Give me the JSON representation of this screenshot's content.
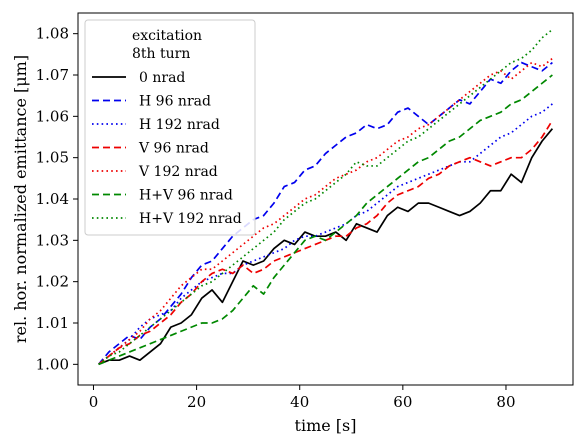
{
  "chart_data": {
    "type": "line",
    "xlabel": "time [s]",
    "ylabel": "rel. hor. normalized emittance [μm]",
    "xlim": [
      -3,
      93
    ],
    "ylim": [
      0.995,
      1.085
    ],
    "xticks": [
      0,
      20,
      40,
      60,
      80
    ],
    "yticks": [
      1.0,
      1.01,
      1.02,
      1.03,
      1.04,
      1.05,
      1.06,
      1.07,
      1.08
    ],
    "ytick_labels": [
      "1.00",
      "1.01",
      "1.02",
      "1.03",
      "1.04",
      "1.05",
      "1.06",
      "1.07",
      "1.08"
    ],
    "grid": false,
    "legend": {
      "placement": "top-left",
      "title_line1": "excitation",
      "title_line2": "8th turn"
    },
    "series": [
      {
        "name": "0 nrad",
        "color": "#000000",
        "dash": "solid",
        "x": [
          1,
          3,
          5,
          7,
          9,
          11,
          13,
          15,
          17,
          19,
          21,
          23,
          25,
          27,
          29,
          31,
          33,
          35,
          37,
          39,
          41,
          43,
          45,
          47,
          49,
          51,
          53,
          55,
          57,
          59,
          61,
          63,
          65,
          67,
          69,
          71,
          73,
          75,
          77,
          79,
          81,
          83,
          85,
          87,
          89
        ],
        "y": [
          1.0,
          1.001,
          1.001,
          1.002,
          1.001,
          1.003,
          1.005,
          1.009,
          1.01,
          1.012,
          1.016,
          1.018,
          1.015,
          1.02,
          1.025,
          1.024,
          1.025,
          1.028,
          1.03,
          1.029,
          1.032,
          1.031,
          1.031,
          1.032,
          1.03,
          1.034,
          1.033,
          1.032,
          1.036,
          1.038,
          1.037,
          1.039,
          1.039,
          1.038,
          1.037,
          1.036,
          1.037,
          1.039,
          1.042,
          1.042,
          1.046,
          1.044,
          1.05,
          1.054,
          1.057
        ]
      },
      {
        "name": "H 96 nrad",
        "color": "#0000ee",
        "dash": "dashed",
        "x": [
          1,
          3,
          5,
          7,
          9,
          11,
          13,
          15,
          17,
          19,
          21,
          23,
          25,
          27,
          29,
          31,
          33,
          35,
          37,
          39,
          41,
          43,
          45,
          47,
          49,
          51,
          53,
          55,
          57,
          59,
          61,
          63,
          65,
          67,
          69,
          71,
          73,
          75,
          77,
          79,
          81,
          83,
          85,
          87,
          89
        ],
        "y": [
          1.0,
          1.003,
          1.005,
          1.007,
          1.006,
          1.009,
          1.011,
          1.014,
          1.017,
          1.021,
          1.024,
          1.025,
          1.028,
          1.031,
          1.033,
          1.035,
          1.036,
          1.039,
          1.043,
          1.044,
          1.047,
          1.048,
          1.051,
          1.053,
          1.055,
          1.056,
          1.058,
          1.057,
          1.058,
          1.061,
          1.062,
          1.06,
          1.058,
          1.06,
          1.062,
          1.064,
          1.063,
          1.066,
          1.069,
          1.068,
          1.071,
          1.073,
          1.072,
          1.071,
          1.073
        ]
      },
      {
        "name": "H 192 nrad",
        "color": "#0000ee",
        "dash": "dotted",
        "x": [
          1,
          3,
          5,
          7,
          9,
          11,
          13,
          15,
          17,
          19,
          21,
          23,
          25,
          27,
          29,
          31,
          33,
          35,
          37,
          39,
          41,
          43,
          45,
          47,
          49,
          51,
          53,
          55,
          57,
          59,
          61,
          63,
          65,
          67,
          69,
          71,
          73,
          75,
          77,
          79,
          81,
          83,
          85,
          87,
          89
        ],
        "y": [
          1.0,
          1.002,
          1.004,
          1.006,
          1.009,
          1.011,
          1.012,
          1.013,
          1.016,
          1.018,
          1.02,
          1.021,
          1.022,
          1.022,
          1.024,
          1.025,
          1.026,
          1.027,
          1.028,
          1.03,
          1.031,
          1.031,
          1.032,
          1.033,
          1.034,
          1.036,
          1.037,
          1.039,
          1.041,
          1.043,
          1.044,
          1.045,
          1.046,
          1.047,
          1.048,
          1.049,
          1.049,
          1.051,
          1.053,
          1.055,
          1.056,
          1.058,
          1.06,
          1.061,
          1.063
        ]
      },
      {
        "name": "V 96 nrad",
        "color": "#ee0000",
        "dash": "dashed",
        "x": [
          1,
          3,
          5,
          7,
          9,
          11,
          13,
          15,
          17,
          19,
          21,
          23,
          25,
          27,
          29,
          31,
          33,
          35,
          37,
          39,
          41,
          43,
          45,
          47,
          49,
          51,
          53,
          55,
          57,
          59,
          61,
          63,
          65,
          67,
          69,
          71,
          73,
          75,
          77,
          79,
          81,
          83,
          85,
          87,
          89
        ],
        "y": [
          1.0,
          1.002,
          1.004,
          1.005,
          1.007,
          1.008,
          1.01,
          1.012,
          1.015,
          1.017,
          1.02,
          1.022,
          1.023,
          1.022,
          1.024,
          1.022,
          1.023,
          1.025,
          1.026,
          1.027,
          1.028,
          1.029,
          1.03,
          1.031,
          1.031,
          1.033,
          1.034,
          1.036,
          1.039,
          1.041,
          1.042,
          1.043,
          1.045,
          1.046,
          1.048,
          1.049,
          1.05,
          1.049,
          1.048,
          1.049,
          1.05,
          1.05,
          1.052,
          1.055,
          1.059
        ]
      },
      {
        "name": "V 192 nrad",
        "color": "#ee0000",
        "dash": "dotted",
        "x": [
          1,
          3,
          5,
          7,
          9,
          11,
          13,
          15,
          17,
          19,
          21,
          23,
          25,
          27,
          29,
          31,
          33,
          35,
          37,
          39,
          41,
          43,
          45,
          47,
          49,
          51,
          53,
          55,
          57,
          59,
          61,
          63,
          65,
          67,
          69,
          71,
          73,
          75,
          77,
          79,
          81,
          83,
          85,
          87,
          89
        ],
        "y": [
          1.0,
          1.002,
          1.004,
          1.006,
          1.008,
          1.011,
          1.013,
          1.016,
          1.019,
          1.021,
          1.023,
          1.023,
          1.025,
          1.027,
          1.029,
          1.031,
          1.033,
          1.034,
          1.036,
          1.038,
          1.04,
          1.041,
          1.043,
          1.045,
          1.046,
          1.047,
          1.049,
          1.05,
          1.052,
          1.054,
          1.055,
          1.057,
          1.058,
          1.06,
          1.062,
          1.064,
          1.066,
          1.068,
          1.07,
          1.071,
          1.069,
          1.071,
          1.073,
          1.072,
          1.074
        ]
      },
      {
        "name": "H+V 96 nrad",
        "color": "#008800",
        "dash": "dashed",
        "x": [
          1,
          3,
          5,
          7,
          9,
          11,
          13,
          15,
          17,
          19,
          21,
          23,
          25,
          27,
          29,
          31,
          33,
          35,
          37,
          39,
          41,
          43,
          45,
          47,
          49,
          51,
          53,
          55,
          57,
          59,
          61,
          63,
          65,
          67,
          69,
          71,
          73,
          75,
          77,
          79,
          81,
          83,
          85,
          87,
          89
        ],
        "y": [
          1.0,
          1.001,
          1.002,
          1.003,
          1.004,
          1.005,
          1.006,
          1.007,
          1.008,
          1.009,
          1.01,
          1.01,
          1.011,
          1.013,
          1.016,
          1.019,
          1.017,
          1.021,
          1.024,
          1.027,
          1.03,
          1.031,
          1.03,
          1.032,
          1.034,
          1.036,
          1.039,
          1.041,
          1.043,
          1.045,
          1.047,
          1.049,
          1.05,
          1.052,
          1.054,
          1.055,
          1.057,
          1.059,
          1.06,
          1.061,
          1.063,
          1.064,
          1.066,
          1.068,
          1.07
        ]
      },
      {
        "name": "H+V 192 nrad",
        "color": "#008800",
        "dash": "dotted",
        "x": [
          1,
          3,
          5,
          7,
          9,
          11,
          13,
          15,
          17,
          19,
          21,
          23,
          25,
          27,
          29,
          31,
          33,
          35,
          37,
          39,
          41,
          43,
          45,
          47,
          49,
          51,
          53,
          55,
          57,
          59,
          61,
          63,
          65,
          67,
          69,
          71,
          73,
          75,
          77,
          79,
          81,
          83,
          85,
          87,
          89
        ],
        "y": [
          1.0,
          1.002,
          1.003,
          1.005,
          1.007,
          1.009,
          1.011,
          1.013,
          1.015,
          1.017,
          1.019,
          1.02,
          1.022,
          1.024,
          1.026,
          1.028,
          1.03,
          1.032,
          1.035,
          1.037,
          1.039,
          1.04,
          1.042,
          1.044,
          1.046,
          1.049,
          1.048,
          1.048,
          1.05,
          1.052,
          1.054,
          1.055,
          1.057,
          1.059,
          1.061,
          1.063,
          1.065,
          1.067,
          1.069,
          1.071,
          1.073,
          1.074,
          1.076,
          1.079,
          1.081
        ]
      }
    ]
  }
}
